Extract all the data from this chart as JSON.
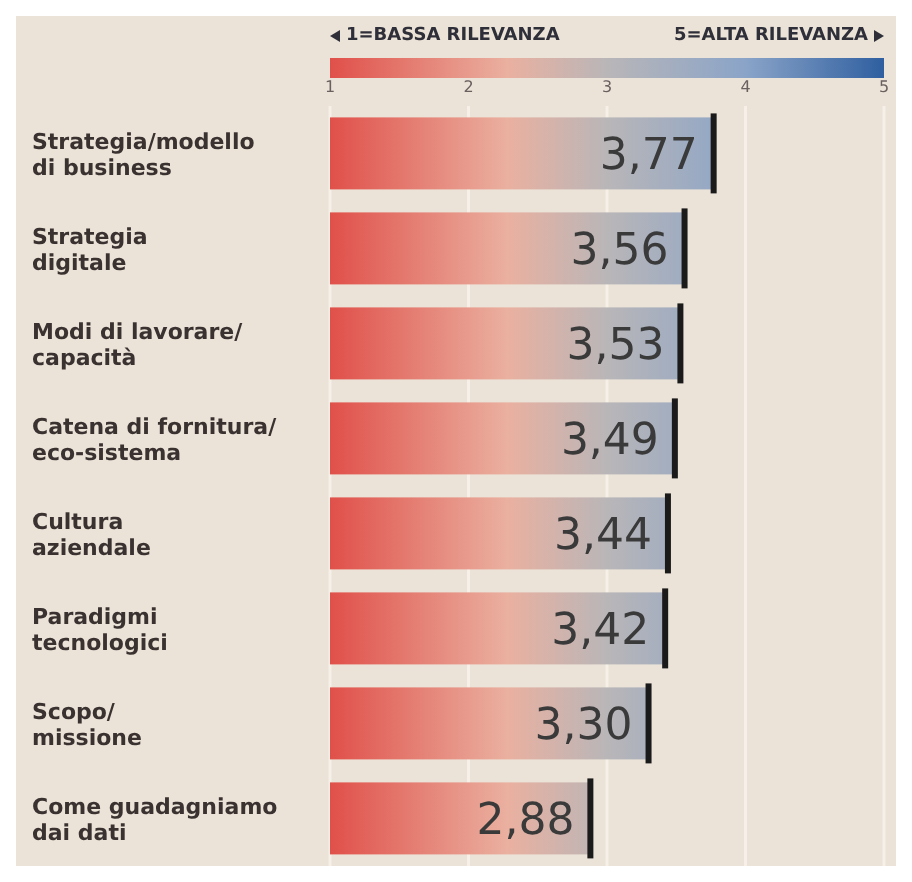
{
  "chart_data": {
    "type": "bar",
    "orientation": "horizontal",
    "categories": [
      "Strategia/modello di business",
      "Strategia digitale",
      "Modi di lavorare/ capacità",
      "Catena di fornitura/ eco-sistema",
      "Cultura aziendale",
      "Paradigmi tecnologici",
      "Scopo/ missione",
      "Come guadagniamo dai dati"
    ],
    "values": [
      3.77,
      3.56,
      3.53,
      3.49,
      3.44,
      3.42,
      3.3,
      2.88
    ],
    "value_labels": [
      "3,77",
      "3,56",
      "3,53",
      "3,49",
      "3,44",
      "3,42",
      "3,30",
      "2,88"
    ],
    "color": "#e0504a",
    "xlim": [
      1,
      5
    ],
    "xticks": [
      1,
      2,
      3,
      4,
      5
    ],
    "grid": "x",
    "annotations": [
      "1=BASSA RILEVANZA",
      "5=ALTA RILEVANZA"
    ]
  }
}
